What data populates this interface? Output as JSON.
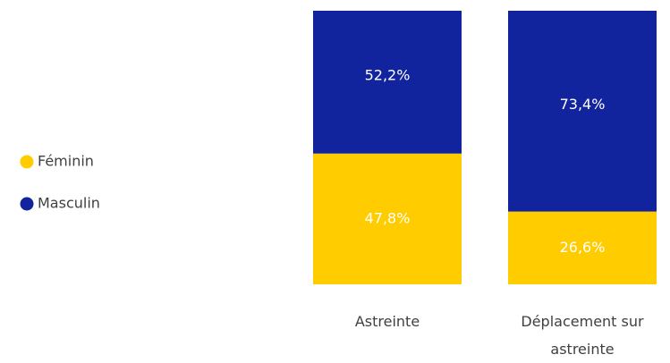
{
  "chart_data": {
    "type": "bar",
    "stacked": true,
    "legend": "left",
    "categories": [
      "Astreinte",
      "Déplacement sur astreinte"
    ],
    "series": [
      {
        "name": "Féminin",
        "color": "#FFCC00",
        "values": [
          47.8,
          26.6
        ],
        "value_labels": [
          "47,8%",
          "26,6%"
        ]
      },
      {
        "name": "Masculin",
        "color": "#12239E",
        "values": [
          52.2,
          73.4
        ],
        "value_labels": [
          "52,2%",
          "73,4%"
        ]
      }
    ],
    "ylim": [
      0,
      100
    ]
  }
}
